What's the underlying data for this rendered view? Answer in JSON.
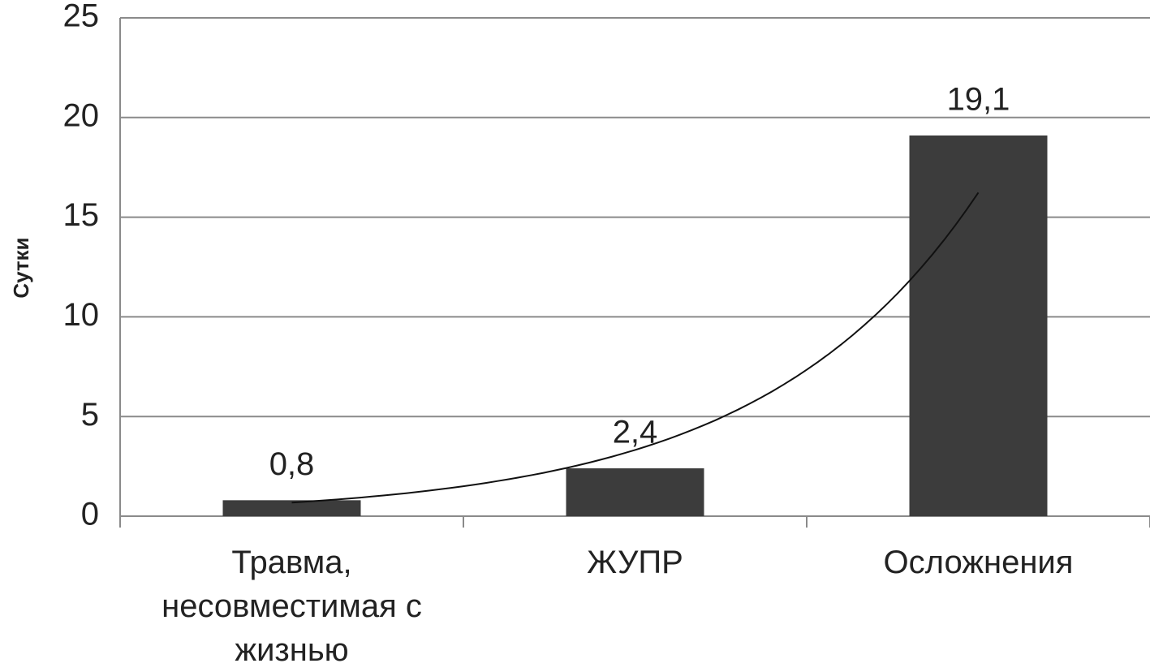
{
  "chart_data": {
    "type": "bar",
    "y_label": "Сутки",
    "categories": [
      "Травма, несовместимая с жизнью",
      "ЖУПР",
      "Осложнения"
    ],
    "values": [
      0.8,
      2.4,
      19.1
    ],
    "value_labels": [
      "0,8",
      "2,4",
      "19,1"
    ],
    "color": "#3c3c3c",
    "ylim": [
      0,
      25
    ],
    "yticks": [
      0,
      5,
      10,
      15,
      20,
      25
    ],
    "grid": true,
    "trendline": "exponential"
  }
}
